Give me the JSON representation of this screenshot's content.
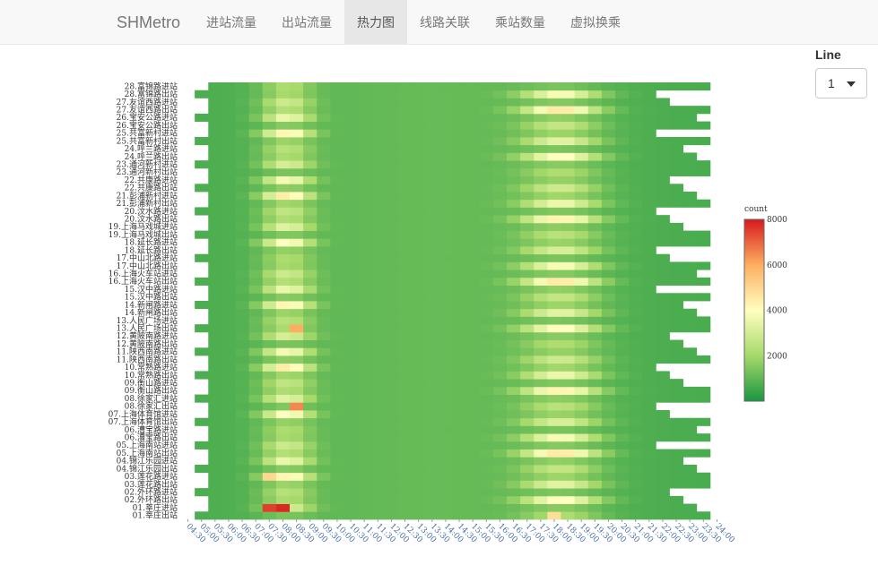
{
  "navbar": {
    "brand": "SHMetro",
    "items": [
      {
        "label": "进站流量",
        "active": false
      },
      {
        "label": "出站流量",
        "active": false
      },
      {
        "label": "热力图",
        "active": true
      },
      {
        "label": "线路关联",
        "active": false
      },
      {
        "label": "乘站数量",
        "active": false
      },
      {
        "label": "虚拟换乘",
        "active": false
      }
    ]
  },
  "controls": {
    "line_label": "Line",
    "line_value": "1"
  },
  "chart_data": {
    "type": "heatmap",
    "legend_title": "count",
    "color_scale": [
      "#1a9641",
      "#a6d96a",
      "#ffffbf",
      "#fdae61",
      "#d7191c"
    ],
    "zlim": [
      0,
      8000
    ],
    "legend_ticks": [
      "2000",
      "4000",
      "6000",
      "8000"
    ],
    "x": [
      "04:30",
      "05:00",
      "05:30",
      "06:00",
      "06:30",
      "07:00",
      "07:30",
      "08:00",
      "08:30",
      "09:00",
      "09:30",
      "10:00",
      "10:30",
      "11:00",
      "11:30",
      "12:00",
      "12:30",
      "13:00",
      "13:30",
      "14:00",
      "14:30",
      "15:00",
      "15:30",
      "16:00",
      "16:30",
      "17:00",
      "17:30",
      "18:00",
      "18:30",
      "19:00",
      "19:30",
      "20:00",
      "20:30",
      "21:00",
      "21:30",
      "22:00",
      "22:30",
      "23:00",
      "23:30",
      "24:00"
    ],
    "y_tick_labels": [
      "01.莘庄出站",
      "01.莘庄进站",
      "02.外环路出站",
      "02.外环路进站",
      "03.莲花路出站",
      "03.莲花路进站",
      "04.锦江乐园出站",
      "04.锦江乐园进站",
      "05.上海南站出站",
      "05.上海南站进站",
      "06.漕宝路出站",
      "06.漕宝路进站",
      "07.上海体育馆出站",
      "07.上海体育馆进站",
      "08.徐家汇出站",
      "08.徐家汇进站",
      "09.衡山路出站",
      "09.衡山路进站",
      "10.常熟路出站",
      "10.常熟路进站",
      "11.陕西南路出站",
      "11.陕西南路进站",
      "12.黄陂南路出站",
      "12.黄陂南路进站",
      "13.人民广场出站",
      "13.人民广场进站",
      "14.新闸路出站",
      "14.新闸路进站",
      "15.汉中路出站",
      "15.汉中路进站",
      "16.上海火车站出站",
      "16.上海火车站进站",
      "17.中山北路出站",
      "17.中山北路进站",
      "18.延长路出站",
      "18.延长路进站",
      "19.上海马戏城出站",
      "19.上海马戏城进站",
      "20.汶水路出站",
      "20.汶水路进站",
      "21.彭浦新村出站",
      "21.彭浦新村进站",
      "22.共康路出站",
      "22.共康路进站",
      "23.通河新村出站",
      "23.通河新村进站",
      "24.呼兰路出站",
      "24.呼兰路进站",
      "25.共富新村出站",
      "25.共富新村进站",
      "26.宝安公路出站",
      "26.宝安公路进站",
      "27.友谊西路出站",
      "27.友谊西路进站",
      "28.富锦路出站",
      "28.富锦路进站"
    ],
    "peaks": [
      {
        "y": "01.莘庄进站",
        "x": "07:30",
        "value": 7500
      },
      {
        "y": "01.莘庄进站",
        "x": "08:00",
        "value": 7800
      },
      {
        "y": "01.莘庄出站",
        "x": "18:00",
        "value": 4800
      },
      {
        "y": "08.徐家汇出站",
        "x": "08:30",
        "value": 6500
      },
      {
        "y": "13.人民广场出站",
        "x": "08:30",
        "value": 6000
      },
      {
        "y": "03.莲花路进站",
        "x": "07:30",
        "value": 5000
      }
    ]
  }
}
